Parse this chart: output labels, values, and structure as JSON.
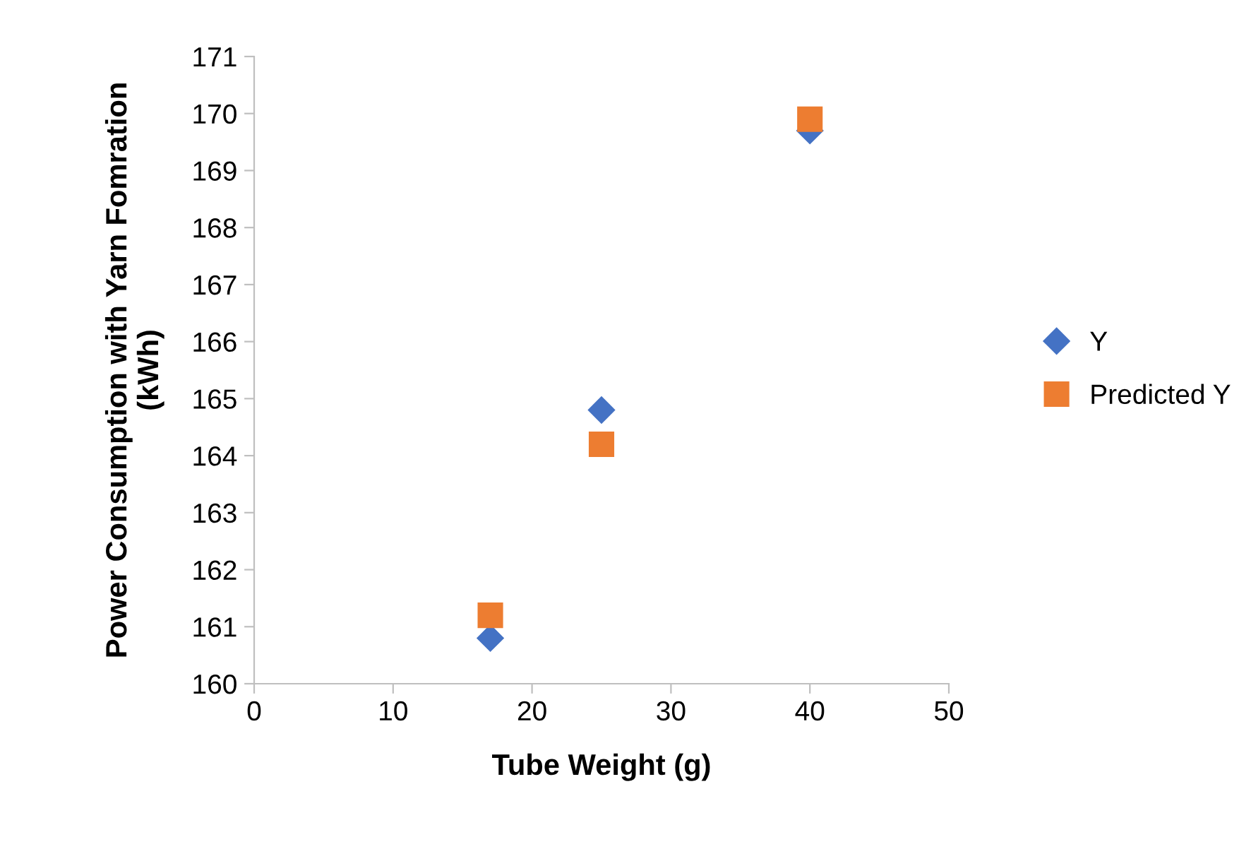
{
  "chart_data": {
    "type": "scatter",
    "xlabel": "Tube Weight (g)",
    "ylabel": "Power Consumption with Yarn Fomration\n(kWh)",
    "series": [
      {
        "name": "Y",
        "color": "#4472c4",
        "marker": "diamond",
        "x": [
          17,
          25,
          40
        ],
        "values": [
          160.8,
          164.8,
          169.7
        ]
      },
      {
        "name": "Predicted Y",
        "color": "#ed7d31",
        "marker": "square",
        "x": [
          17,
          25,
          40
        ],
        "values": [
          161.2,
          164.2,
          169.9
        ]
      }
    ],
    "xlim": [
      0,
      50
    ],
    "xticks": [
      0,
      10,
      20,
      30,
      40,
      50
    ],
    "ylim": [
      160,
      171
    ],
    "yticks": [
      160,
      161,
      162,
      163,
      164,
      165,
      166,
      167,
      168,
      169,
      170,
      171
    ],
    "grid": false,
    "legend": "right"
  }
}
